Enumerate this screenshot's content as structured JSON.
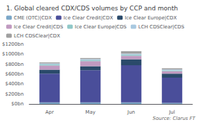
{
  "chart_data": {
    "type": "bar",
    "stacked": true,
    "title": "1. Global cleared CDX/CDS volumes by CCP and month",
    "categories": [
      "Apr",
      "May",
      "Jun",
      "Jul"
    ],
    "series": [
      {
        "name": "CME (OTC)|CDX",
        "color": "#7BA7C8",
        "values": [
          30,
          30,
          30,
          20
        ]
      },
      {
        "name": "Ice Clear Credit|CDX",
        "color": "#4A4E9A",
        "values": [
          580,
          650,
          750,
          510
        ]
      },
      {
        "name": "Ice Clear Europe|CDX",
        "color": "#2A4A6A",
        "values": [
          80,
          80,
          120,
          80
        ]
      },
      {
        "name": "Ice Clear Credit|CDS",
        "color": "#C09AC0",
        "values": [
          85,
          100,
          70,
          50
        ]
      },
      {
        "name": "Ice Clear Europe|CDS",
        "color": "#90C8C8",
        "values": [
          25,
          25,
          25,
          18
        ]
      },
      {
        "name": "LCH CDSClear|CDS",
        "color": "#A8C8E0",
        "values": [
          18,
          18,
          18,
          15
        ]
      },
      {
        "name": "LCH CDSClear|CDX",
        "color": "#A0A0A0",
        "values": [
          20,
          20,
          50,
          25
        ]
      }
    ],
    "ylim": [
      0,
      1200
    ],
    "yticks": [
      {
        "value": 0,
        "label": "$0bn"
      },
      {
        "value": 200,
        "label": "$200bn"
      },
      {
        "value": 400,
        "label": "$400bn"
      },
      {
        "value": 600,
        "label": "$600bn"
      },
      {
        "value": 800,
        "label": "$800bn"
      },
      {
        "value": 1000,
        "label": "$1000bn"
      },
      {
        "value": 1200,
        "label": "$1200bn"
      }
    ],
    "grid": false,
    "legend": "top left",
    "annotations": [
      "Source: Clarus FT"
    ]
  }
}
